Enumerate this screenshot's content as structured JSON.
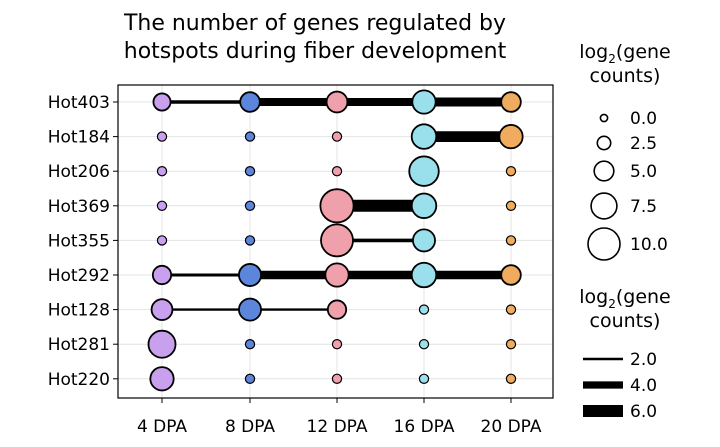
{
  "chart_data": {
    "type": "dot-connector",
    "title_lines": [
      "The number of genes regulated by",
      "hotspots during fiber development"
    ],
    "x_categories": [
      "4 DPA",
      "8 DPA",
      "12 DPA",
      "16 DPA",
      "20 DPA"
    ],
    "y_categories": [
      "Hot403",
      "Hot184",
      "Hot206",
      "Hot369",
      "Hot355",
      "Hot292",
      "Hot128",
      "Hot281",
      "Hot220"
    ],
    "stage_colors": [
      "#c9a0ee",
      "#5b86dc",
      "#f0a0ab",
      "#9ae0ec",
      "#efab5e"
    ],
    "points": [
      {
        "hotspot": "Hot403",
        "values": [
          4.0,
          5.0,
          5.5,
          6.5,
          5.0
        ]
      },
      {
        "hotspot": "Hot184",
        "values": [
          0.8,
          0.8,
          0.8,
          7.0,
          6.5
        ]
      },
      {
        "hotspot": "Hot206",
        "values": [
          0.8,
          0.8,
          0.8,
          9.0,
          0.8
        ]
      },
      {
        "hotspot": "Hot369",
        "values": [
          0.8,
          0.8,
          10.5,
          7.0,
          0.8
        ]
      },
      {
        "hotspot": "Hot355",
        "values": [
          0.8,
          0.8,
          10.0,
          6.0,
          0.8
        ]
      },
      {
        "hotspot": "Hot292",
        "values": [
          4.5,
          6.0,
          6.5,
          7.0,
          5.0
        ]
      },
      {
        "hotspot": "Hot128",
        "values": [
          5.5,
          6.0,
          4.5,
          0.8,
          0.8
        ]
      },
      {
        "hotspot": "Hot281",
        "values": [
          8.0,
          0.8,
          0.8,
          0.8,
          0.8
        ]
      },
      {
        "hotspot": "Hot220",
        "values": [
          6.5,
          0.8,
          0.8,
          0.8,
          0.8
        ]
      }
    ],
    "links": [
      {
        "hotspot": "Hot403",
        "from": "4 DPA",
        "to": "8 DPA",
        "value": 2.5
      },
      {
        "hotspot": "Hot403",
        "from": "8 DPA",
        "to": "12 DPA",
        "value": 4.3
      },
      {
        "hotspot": "Hot403",
        "from": "12 DPA",
        "to": "16 DPA",
        "value": 4.3
      },
      {
        "hotspot": "Hot403",
        "from": "16 DPA",
        "to": "20 DPA",
        "value": 4.8
      },
      {
        "hotspot": "Hot184",
        "from": "16 DPA",
        "to": "20 DPA",
        "value": 5.5
      },
      {
        "hotspot": "Hot369",
        "from": "12 DPA",
        "to": "16 DPA",
        "value": 6.0
      },
      {
        "hotspot": "Hot355",
        "from": "12 DPA",
        "to": "16 DPA",
        "value": 2.5
      },
      {
        "hotspot": "Hot292",
        "from": "4 DPA",
        "to": "8 DPA",
        "value": 2.3
      },
      {
        "hotspot": "Hot292",
        "from": "8 DPA",
        "to": "12 DPA",
        "value": 4.5
      },
      {
        "hotspot": "Hot292",
        "from": "12 DPA",
        "to": "16 DPA",
        "value": 4.5
      },
      {
        "hotspot": "Hot292",
        "from": "16 DPA",
        "to": "20 DPA",
        "value": 4.5
      },
      {
        "hotspot": "Hot128",
        "from": "4 DPA",
        "to": "8 DPA",
        "value": 2.0
      },
      {
        "hotspot": "Hot128",
        "from": "8 DPA",
        "to": "12 DPA",
        "value": 2.0
      }
    ],
    "size_legend": {
      "title_lines": [
        {
          "pre": "log",
          "sub": "2",
          "post": "(gene"
        },
        {
          "pre": "counts)",
          "sub": "",
          "post": ""
        }
      ],
      "values": [
        0.0,
        2.5,
        5.0,
        7.5,
        10.0
      ],
      "labels": [
        "0.0",
        "2.5",
        "5.0",
        "7.5",
        "10.0"
      ]
    },
    "width_legend": {
      "title_lines": [
        {
          "pre": "log",
          "sub": "2",
          "post": "(gene"
        },
        {
          "pre": "counts)",
          "sub": "",
          "post": ""
        }
      ],
      "values": [
        2.0,
        4.0,
        6.0
      ],
      "labels": [
        "2.0",
        "4.0",
        "6.0"
      ]
    },
    "grid": true
  }
}
